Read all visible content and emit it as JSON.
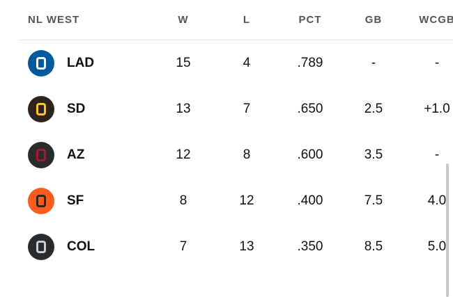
{
  "table": {
    "header": [
      "NL WEST",
      "W",
      "L",
      "PCT",
      "GB",
      "WCGB"
    ],
    "rows": [
      [
        "LAD",
        "15",
        "4",
        ".789",
        "-",
        "-"
      ],
      [
        "SD",
        "13",
        "7",
        ".650",
        "2.5",
        "+1.0"
      ],
      [
        "AZ",
        "12",
        "8",
        ".600",
        "3.5",
        "-"
      ],
      [
        "SF",
        "8",
        "12",
        ".400",
        "7.5",
        "4.0"
      ],
      [
        "COL",
        "7",
        "13",
        ".350",
        "8.5",
        "5.0"
      ]
    ]
  }
}
